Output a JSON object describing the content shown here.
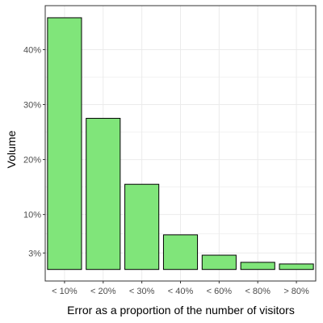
{
  "chart_data": {
    "type": "bar",
    "title": "",
    "xlabel": "Error as a proportion of the number of visitors",
    "ylabel": "Volume",
    "categories": [
      "< 10%",
      "< 20%",
      "< 30%",
      "< 40%",
      "< 60%",
      "< 80%",
      "> 80%"
    ],
    "values": [
      45.8,
      27.5,
      15.5,
      6.3,
      2.6,
      1.3,
      1.0
    ],
    "y_axis_offset": 0,
    "ylim": [
      -2.1,
      48.0
    ],
    "yticks": [
      3,
      10,
      20,
      30,
      40
    ],
    "ytick_labels": [
      "3%",
      "10%",
      "20%",
      "30%",
      "40%"
    ],
    "grid": true,
    "legend": "none",
    "bar_fill": "#80e57a",
    "bar_stroke": "#000000",
    "panel_border": "#333333",
    "grid_color": "#ebebeb"
  }
}
